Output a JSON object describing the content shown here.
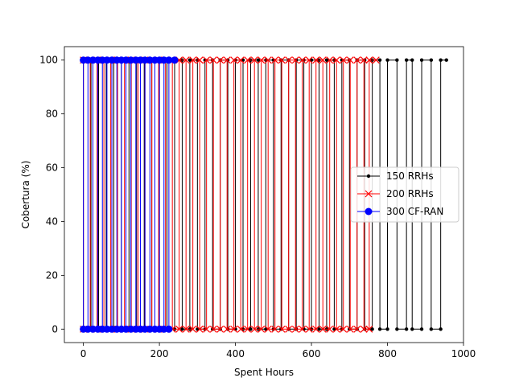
{
  "chart_data": {
    "type": "line",
    "title": "",
    "xlabel": "Spent Hours",
    "ylabel": "Cobertura (%)",
    "xlim": [
      -50,
      1000
    ],
    "ylim": [
      -5,
      105
    ],
    "xticks": [
      0,
      200,
      400,
      600,
      800,
      1000
    ],
    "yticks": [
      0,
      20,
      40,
      60,
      80,
      100
    ],
    "grid": false,
    "legend_position": "center-right",
    "note": "Each series alternates between 0 and 100 (square-wave style) across the time range.",
    "series": [
      {
        "name": "150 RRHs",
        "color": "#000000",
        "marker": "point",
        "x": [
          0,
          0,
          20,
          20,
          40,
          40,
          60,
          60,
          80,
          80,
          100,
          100,
          120,
          120,
          140,
          140,
          160,
          160,
          180,
          180,
          200,
          200,
          220,
          220,
          240,
          240,
          260,
          260,
          280,
          280,
          300,
          300,
          320,
          320,
          340,
          340,
          360,
          360,
          380,
          380,
          400,
          400,
          420,
          420,
          440,
          440,
          460,
          460,
          480,
          480,
          500,
          500,
          520,
          520,
          540,
          540,
          560,
          560,
          580,
          580,
          600,
          600,
          620,
          620,
          640,
          640,
          660,
          660,
          680,
          680,
          700,
          700,
          720,
          720,
          740,
          740,
          760,
          760,
          780,
          780,
          800,
          800,
          825,
          825,
          850,
          850,
          865,
          865,
          890,
          890,
          915,
          915,
          940,
          940,
          955
        ],
        "y": [
          0,
          100,
          100,
          0,
          0,
          100,
          100,
          0,
          0,
          100,
          100,
          0,
          0,
          100,
          100,
          0,
          0,
          100,
          100,
          0,
          0,
          100,
          100,
          0,
          0,
          100,
          100,
          0,
          0,
          100,
          100,
          0,
          0,
          100,
          100,
          0,
          0,
          100,
          100,
          0,
          0,
          100,
          100,
          0,
          0,
          100,
          100,
          0,
          0,
          100,
          100,
          0,
          0,
          100,
          100,
          0,
          0,
          100,
          100,
          0,
          0,
          100,
          100,
          0,
          0,
          100,
          100,
          0,
          0,
          100,
          100,
          0,
          0,
          100,
          100,
          0,
          0,
          100,
          100,
          0,
          0,
          100,
          100,
          0,
          0,
          100,
          100,
          0,
          0,
          100,
          100,
          0,
          0,
          100,
          100
        ]
      },
      {
        "name": "200 RRHs",
        "color": "#ff0000",
        "marker": "x",
        "x": [
          0,
          0,
          18,
          18,
          36,
          36,
          54,
          54,
          72,
          72,
          90,
          90,
          108,
          108,
          126,
          126,
          144,
          144,
          162,
          162,
          180,
          180,
          198,
          198,
          216,
          216,
          234,
          234,
          252,
          252,
          270,
          270,
          288,
          288,
          306,
          306,
          324,
          324,
          342,
          342,
          360,
          360,
          378,
          378,
          396,
          396,
          414,
          414,
          432,
          432,
          450,
          450,
          468,
          468,
          486,
          486,
          504,
          504,
          522,
          522,
          540,
          540,
          558,
          558,
          576,
          576,
          594,
          594,
          612,
          612,
          630,
          630,
          648,
          648,
          666,
          666,
          684,
          684,
          702,
          702,
          720,
          720,
          738,
          738,
          752,
          752,
          770
        ],
        "y": [
          0,
          100,
          100,
          0,
          0,
          100,
          100,
          0,
          0,
          100,
          100,
          0,
          0,
          100,
          100,
          0,
          0,
          100,
          100,
          0,
          0,
          100,
          100,
          0,
          0,
          100,
          100,
          0,
          0,
          100,
          100,
          0,
          0,
          100,
          100,
          0,
          0,
          100,
          100,
          0,
          0,
          100,
          100,
          0,
          0,
          100,
          100,
          0,
          0,
          100,
          100,
          0,
          0,
          100,
          100,
          0,
          0,
          100,
          100,
          0,
          0,
          100,
          100,
          0,
          0,
          100,
          100,
          0,
          0,
          100,
          100,
          0,
          0,
          100,
          100,
          0,
          0,
          100,
          100,
          0,
          0,
          100,
          100,
          0,
          0,
          100,
          100
        ]
      },
      {
        "name": "300 CF-RAN",
        "color": "#0000ff",
        "marker": "circle",
        "x": [
          0,
          0,
          12,
          12,
          25,
          25,
          38,
          38,
          50,
          50,
          62,
          62,
          75,
          75,
          88,
          88,
          100,
          100,
          112,
          112,
          125,
          125,
          138,
          138,
          150,
          150,
          162,
          162,
          175,
          175,
          188,
          188,
          200,
          200,
          212,
          212,
          225,
          225,
          240
        ],
        "y": [
          0,
          100,
          100,
          0,
          0,
          100,
          100,
          0,
          0,
          100,
          100,
          0,
          0,
          100,
          100,
          0,
          0,
          100,
          100,
          0,
          0,
          100,
          100,
          0,
          0,
          100,
          100,
          0,
          0,
          100,
          100,
          0,
          0,
          100,
          100,
          0,
          0,
          100,
          100
        ]
      }
    ]
  }
}
